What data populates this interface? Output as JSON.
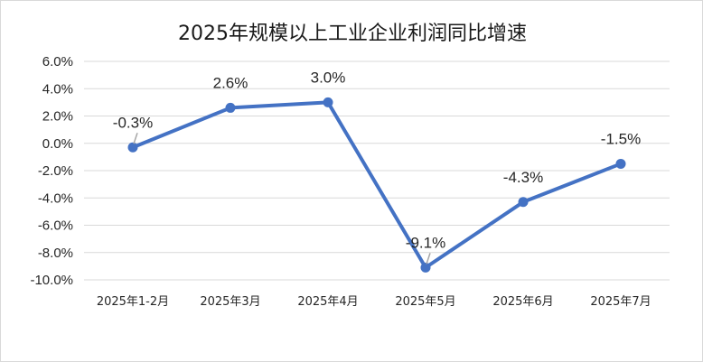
{
  "chart_data": {
    "type": "line",
    "title": "2025年规模以上工业企业利润同比增速",
    "categories": [
      "2025年1-2月",
      "2025年3月",
      "2025年4月",
      "2025年5月",
      "2025年6月",
      "2025年7月"
    ],
    "series": [
      {
        "values": [
          -0.3,
          2.6,
          3.0,
          -9.1,
          -4.3,
          -1.5
        ]
      }
    ],
    "data_labels": [
      "-0.3%",
      "2.6%",
      "3.0%",
      "-9.1%",
      "-4.3%",
      "-1.5%"
    ],
    "y_ticks": [
      6.0,
      4.0,
      2.0,
      0.0,
      -2.0,
      -4.0,
      -6.0,
      -8.0,
      -10.0
    ],
    "y_tick_labels": [
      "6.0%",
      "4.0%",
      "2.0%",
      "0.0%",
      "-2.0%",
      "-4.0%",
      "-6.0%",
      "-8.0%",
      "-10.0%"
    ],
    "ylim": [
      -10,
      6
    ],
    "grid": true,
    "legend": "none",
    "colors": {
      "series": "#4472c4",
      "grid": "#d9d9d9",
      "leader": "#a6a6a6"
    }
  }
}
